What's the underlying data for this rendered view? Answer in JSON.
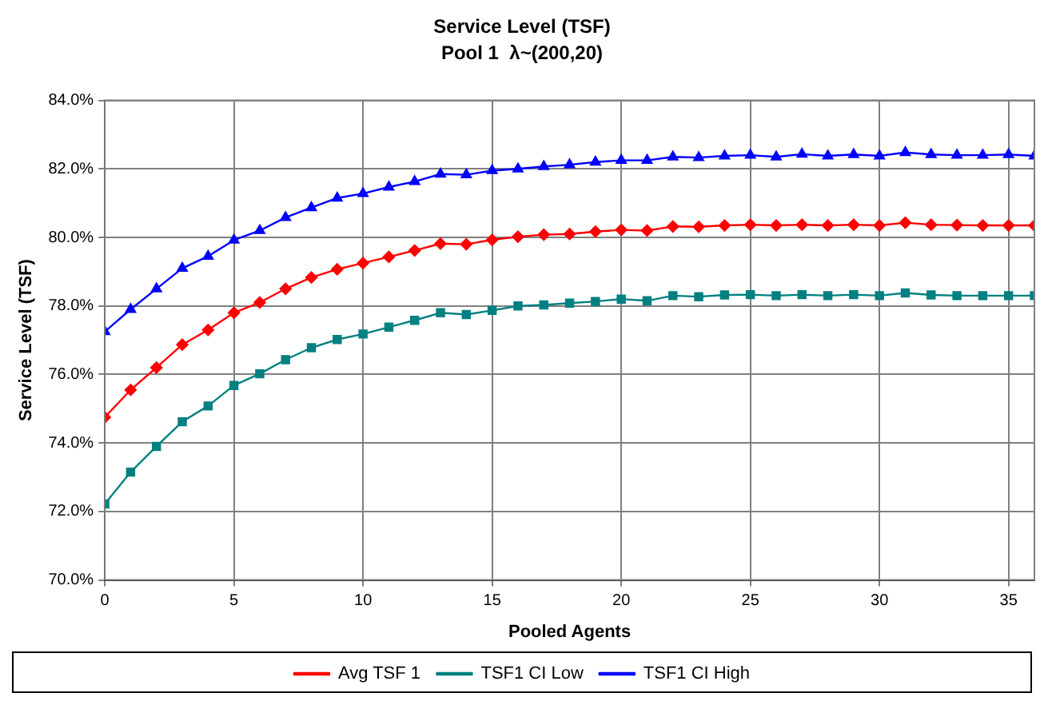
{
  "chart_data": {
    "type": "line",
    "title": "Service Level (TSF)",
    "subtitle": "Pool 1  λ~(200,20)",
    "xlabel": "Pooled Agents",
    "ylabel": "Service Level (TSF)",
    "x": [
      0,
      1,
      2,
      3,
      4,
      5,
      6,
      7,
      8,
      9,
      10,
      11,
      12,
      13,
      14,
      15,
      16,
      17,
      18,
      19,
      20,
      21,
      22,
      23,
      24,
      25,
      26,
      27,
      28,
      29,
      30,
      31,
      32,
      33,
      34,
      35,
      36
    ],
    "series": [
      {
        "name": "Avg TSF 1",
        "color": "#ff0000",
        "marker": "diamond",
        "values": [
          74.75,
          75.55,
          76.2,
          76.87,
          77.3,
          77.8,
          78.1,
          78.5,
          78.83,
          79.07,
          79.25,
          79.43,
          79.62,
          79.82,
          79.8,
          79.93,
          80.02,
          80.08,
          80.1,
          80.17,
          80.22,
          80.2,
          80.32,
          80.31,
          80.35,
          80.37,
          80.35,
          80.37,
          80.35,
          80.37,
          80.35,
          80.43,
          80.37,
          80.36,
          80.35,
          80.35,
          80.35
        ]
      },
      {
        "name": "TSF1 CI Low",
        "color": "#008080",
        "marker": "square",
        "values": [
          72.22,
          73.15,
          73.9,
          74.62,
          75.08,
          75.68,
          76.02,
          76.43,
          76.78,
          77.02,
          77.18,
          77.38,
          77.58,
          77.8,
          77.75,
          77.87,
          78.0,
          78.03,
          78.08,
          78.13,
          78.2,
          78.15,
          78.3,
          78.27,
          78.32,
          78.33,
          78.3,
          78.33,
          78.3,
          78.33,
          78.3,
          78.38,
          78.32,
          78.3,
          78.3,
          78.3,
          78.3
        ]
      },
      {
        "name": "TSF1 CI High",
        "color": "#0000ff",
        "marker": "triangle",
        "values": [
          77.25,
          77.9,
          78.5,
          79.1,
          79.45,
          79.92,
          80.2,
          80.58,
          80.87,
          81.15,
          81.28,
          81.47,
          81.63,
          81.85,
          81.83,
          81.95,
          82.0,
          82.07,
          82.12,
          82.2,
          82.25,
          82.25,
          82.35,
          82.33,
          82.38,
          82.4,
          82.35,
          82.43,
          82.38,
          82.42,
          82.38,
          82.48,
          82.42,
          82.4,
          82.4,
          82.42,
          82.38
        ]
      }
    ],
    "xlim": [
      0,
      36
    ],
    "xticks": [
      0,
      5,
      10,
      15,
      20,
      25,
      30,
      35
    ],
    "ylim": [
      70,
      84
    ],
    "yticks": [
      {
        "value": 70,
        "label": "70.0%"
      },
      {
        "value": 72,
        "label": "72.0%"
      },
      {
        "value": 74,
        "label": "74.0%"
      },
      {
        "value": 76,
        "label": "76.0%"
      },
      {
        "value": 78,
        "label": "78.0%"
      },
      {
        "value": 80,
        "label": "80.0%"
      },
      {
        "value": 82,
        "label": "82.0%"
      },
      {
        "value": 84,
        "label": "84.0%"
      }
    ],
    "grid": true,
    "legend": "bottom",
    "line_style": "solid"
  }
}
